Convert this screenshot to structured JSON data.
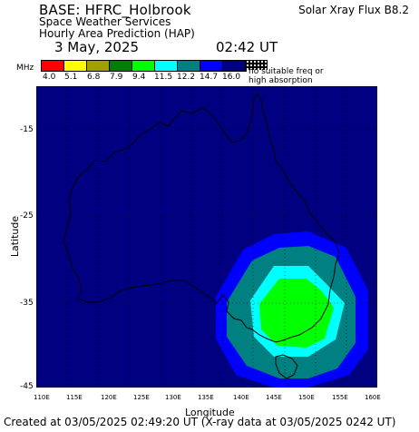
{
  "header": {
    "base": "BASE: HFRC_Holbrook",
    "line2": "Space Weather Services",
    "line3": "Hourly Area Prediction (HAP)",
    "flux": "Solar Xray Flux B8.2",
    "date": "3 May, 2025",
    "time": "02:42 UT"
  },
  "legend": {
    "unit": "MHz",
    "colors": [
      "#ff0000",
      "#ffff00",
      "#a0a000",
      "#008000",
      "#00ff00",
      "#00ffff",
      "#008080",
      "#0000ff",
      "#000080"
    ],
    "values": [
      "4.0",
      "5.1",
      "6.8",
      "7.9",
      "9.4",
      "11.5",
      "12.2",
      "14.7",
      "16.0"
    ],
    "no_suitable_1": "no suitable freq or",
    "no_suitable_2": "high absorption"
  },
  "axes": {
    "ylabel": "Latitude",
    "xlabel": "Longitude",
    "lat_ticks": [
      "-15",
      "-25",
      "-35",
      "-45"
    ],
    "lon_ticks": [
      "110E",
      "115E",
      "120E",
      "125E",
      "130E",
      "135E",
      "140E",
      "145E",
      "150E",
      "155E",
      "160E"
    ]
  },
  "footer": "Created at 03/05/2025 02:49:20 UT (X-ray data at 03/05/2025 0242 UT)"
}
